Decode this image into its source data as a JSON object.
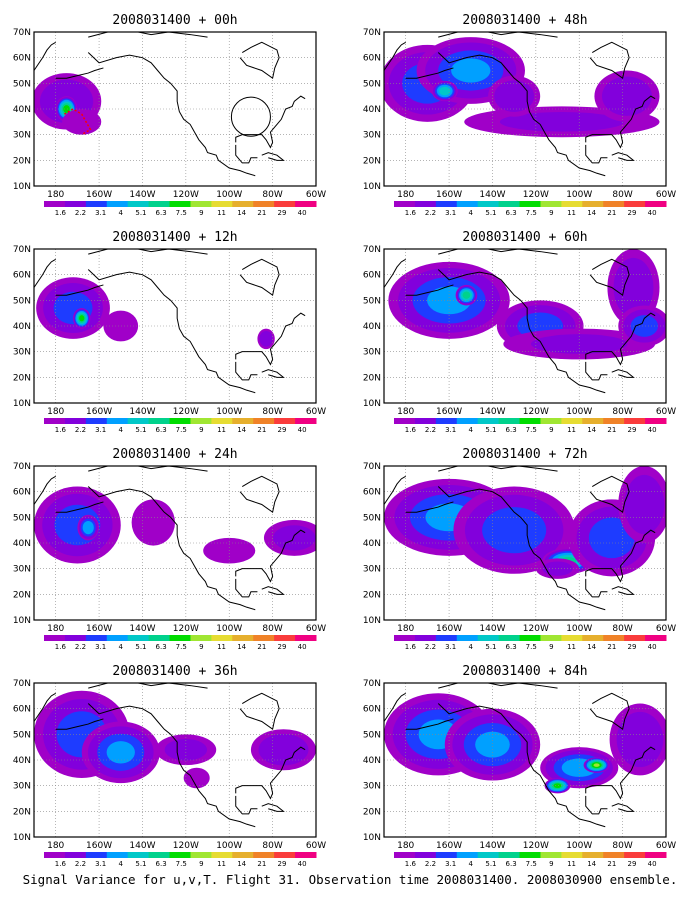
{
  "caption": "Signal Variance for u,v,T. Flight 31. Observation time 2008031400. 2008030900 ensemble.",
  "chart_data": {
    "type": "heatmap",
    "lon_ticks": [
      "180",
      "160W",
      "140W",
      "120W",
      "100W",
      "80W",
      "60W"
    ],
    "lat_ticks": [
      "10N",
      "20N",
      "30N",
      "40N",
      "50N",
      "60N",
      "70N"
    ],
    "xlim": [
      -190,
      -60
    ],
    "ylim": [
      10,
      70
    ],
    "grid": "dotted",
    "colorbar": {
      "levels": [
        "1.6",
        "2.2",
        "3.1",
        "4",
        "5.1",
        "6.3",
        "7.5",
        "9",
        "11",
        "14",
        "21",
        "29",
        "40"
      ],
      "colors": [
        "#a000c8",
        "#8200dc",
        "#1e3cff",
        "#00a0ff",
        "#00c8c8",
        "#00d28c",
        "#00dc00",
        "#a0e632",
        "#e6dc32",
        "#e6af2d",
        "#f08228",
        "#fa3c3c",
        "#f00082"
      ]
    },
    "panels": [
      {
        "title": "2008031400 + 00h",
        "blobs": [
          {
            "lon": -175,
            "lat": 43,
            "rx": 16,
            "ry": 11,
            "v": 3.0
          },
          {
            "lon": -175,
            "lat": 40,
            "rx": 5,
            "ry": 5,
            "v": 8.0
          },
          {
            "lon": -168,
            "lat": 35,
            "rx": 9,
            "ry": 5,
            "v": 2.0
          }
        ],
        "overlay": {
          "ring_lon": -90,
          "ring_lat": 37,
          "ring_r": 9
        }
      },
      {
        "title": "2008031400 + 48h",
        "blobs": [
          {
            "lon": -170,
            "lat": 50,
            "rx": 22,
            "ry": 15,
            "v": 3.5
          },
          {
            "lon": -150,
            "lat": 55,
            "rx": 25,
            "ry": 13,
            "v": 4.0
          },
          {
            "lon": -162,
            "lat": 47,
            "rx": 6,
            "ry": 4,
            "v": 6.0
          },
          {
            "lon": -108,
            "lat": 35,
            "rx": 45,
            "ry": 6,
            "v": 2.2
          },
          {
            "lon": -78,
            "lat": 45,
            "rx": 15,
            "ry": 10,
            "v": 3.0
          },
          {
            "lon": -130,
            "lat": 45,
            "rx": 12,
            "ry": 8,
            "v": 3.0
          }
        ]
      },
      {
        "title": "2008031400 + 12h",
        "blobs": [
          {
            "lon": -172,
            "lat": 47,
            "rx": 17,
            "ry": 12,
            "v": 3.5
          },
          {
            "lon": -168,
            "lat": 43,
            "rx": 4,
            "ry": 4,
            "v": 8.0
          },
          {
            "lon": -150,
            "lat": 40,
            "rx": 8,
            "ry": 6,
            "v": 2.0
          },
          {
            "lon": -83,
            "lat": 35,
            "rx": 4,
            "ry": 4,
            "v": 3.0
          }
        ]
      },
      {
        "title": "2008031400 + 60h",
        "blobs": [
          {
            "lon": -160,
            "lat": 50,
            "rx": 28,
            "ry": 15,
            "v": 4.0
          },
          {
            "lon": -152,
            "lat": 52,
            "rx": 5,
            "ry": 4,
            "v": 7.0
          },
          {
            "lon": -118,
            "lat": 40,
            "rx": 20,
            "ry": 10,
            "v": 3.5
          },
          {
            "lon": -100,
            "lat": 33,
            "rx": 35,
            "ry": 6,
            "v": 2.2
          },
          {
            "lon": -75,
            "lat": 55,
            "rx": 12,
            "ry": 15,
            "v": 3.0
          },
          {
            "lon": -70,
            "lat": 40,
            "rx": 12,
            "ry": 8,
            "v": 3.5
          }
        ]
      },
      {
        "title": "2008031400 + 24h",
        "blobs": [
          {
            "lon": -170,
            "lat": 47,
            "rx": 20,
            "ry": 15,
            "v": 3.5
          },
          {
            "lon": -165,
            "lat": 46,
            "rx": 5,
            "ry": 5,
            "v": 5.0
          },
          {
            "lon": -135,
            "lat": 48,
            "rx": 10,
            "ry": 9,
            "v": 2.0
          },
          {
            "lon": -100,
            "lat": 37,
            "rx": 12,
            "ry": 5,
            "v": 2.0
          },
          {
            "lon": -70,
            "lat": 42,
            "rx": 14,
            "ry": 7,
            "v": 2.5
          }
        ]
      },
      {
        "title": "2008031400 + 72h",
        "blobs": [
          {
            "lon": -160,
            "lat": 50,
            "rx": 30,
            "ry": 15,
            "v": 4.0
          },
          {
            "lon": -130,
            "lat": 45,
            "rx": 28,
            "ry": 17,
            "v": 3.5
          },
          {
            "lon": -105,
            "lat": 33,
            "rx": 12,
            "ry": 5,
            "v": 6.5
          },
          {
            "lon": -85,
            "lat": 42,
            "rx": 20,
            "ry": 15,
            "v": 3.5
          },
          {
            "lon": -70,
            "lat": 55,
            "rx": 12,
            "ry": 15,
            "v": 3.0
          },
          {
            "lon": -110,
            "lat": 30,
            "rx": 10,
            "ry": 4,
            "v": 2.5
          }
        ]
      },
      {
        "title": "2008031400 + 36h",
        "blobs": [
          {
            "lon": -168,
            "lat": 50,
            "rx": 22,
            "ry": 17,
            "v": 3.5
          },
          {
            "lon": -160,
            "lat": 46,
            "rx": 5,
            "ry": 5,
            "v": 5.0
          },
          {
            "lon": -150,
            "lat": 43,
            "rx": 18,
            "ry": 12,
            "v": 4.0
          },
          {
            "lon": -120,
            "lat": 44,
            "rx": 14,
            "ry": 6,
            "v": 2.5
          },
          {
            "lon": -75,
            "lat": 44,
            "rx": 15,
            "ry": 8,
            "v": 3.0
          },
          {
            "lon": -115,
            "lat": 33,
            "rx": 6,
            "ry": 4,
            "v": 1.8
          }
        ]
      },
      {
        "title": "2008031400 + 84h",
        "blobs": [
          {
            "lon": -165,
            "lat": 50,
            "rx": 25,
            "ry": 16,
            "v": 4.0
          },
          {
            "lon": -140,
            "lat": 46,
            "rx": 22,
            "ry": 14,
            "v": 4.0
          },
          {
            "lon": -100,
            "lat": 37,
            "rx": 18,
            "ry": 8,
            "v": 4.5
          },
          {
            "lon": -92,
            "lat": 38,
            "rx": 6,
            "ry": 3,
            "v": 9.0
          },
          {
            "lon": -110,
            "lat": 30,
            "rx": 6,
            "ry": 3,
            "v": 8.0
          },
          {
            "lon": -72,
            "lat": 48,
            "rx": 14,
            "ry": 14,
            "v": 3.0
          }
        ]
      }
    ]
  }
}
